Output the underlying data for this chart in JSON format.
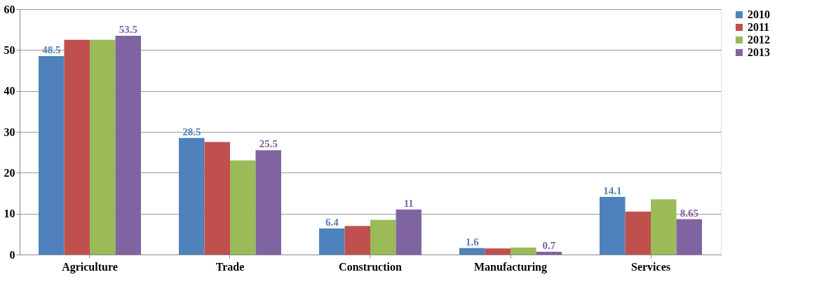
{
  "chart_data": {
    "type": "bar",
    "categories": [
      "Agriculture",
      "Trade",
      "Construction",
      "Manufacturing",
      "Services"
    ],
    "series": [
      {
        "name": "2010",
        "color": "#4f81bd",
        "values": [
          48.5,
          28.5,
          6.4,
          1.6,
          14.1
        ],
        "value_labels": [
          "48.5",
          "28.5",
          "6.4",
          "1.6",
          "14.1"
        ]
      },
      {
        "name": "2011",
        "color": "#c0504d",
        "values": [
          52.5,
          27.5,
          7,
          1.5,
          10.5
        ]
      },
      {
        "name": "2012",
        "color": "#9bbb59",
        "values": [
          52.5,
          23,
          8.5,
          1.7,
          13.5
        ]
      },
      {
        "name": "2013",
        "color": "#8064a2",
        "values": [
          53.5,
          25.5,
          11,
          0.7,
          8.65
        ],
        "value_labels": [
          "53.5",
          "25.5",
          "11",
          "0.7",
          "8.65"
        ]
      }
    ],
    "ylim": [
      0,
      60
    ],
    "yticks": [
      0,
      10,
      20,
      30,
      40,
      50,
      60
    ],
    "grid": "y",
    "legend": "right"
  }
}
